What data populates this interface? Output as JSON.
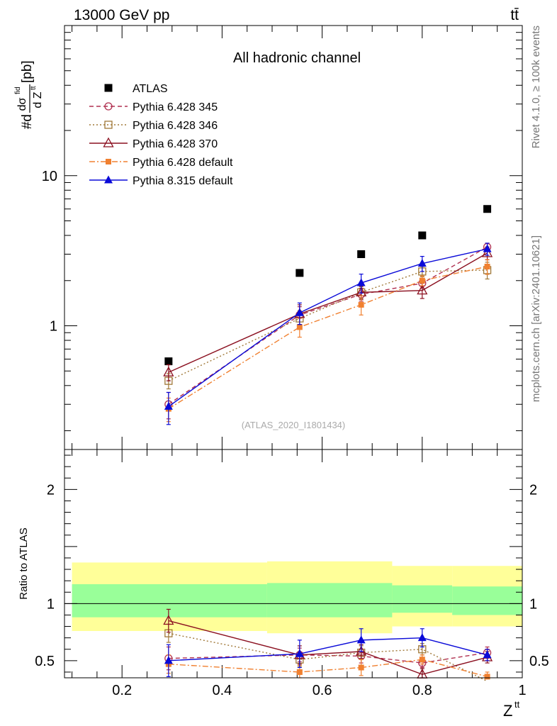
{
  "header": {
    "energy_label": "13000 GeV pp",
    "process_label": "tt̄",
    "rivet_label": "Rivet 4.1.0, ≥ 100k events",
    "mcplots_label": "mcplots.cern.ch [arXiv:2401.10621]"
  },
  "chart_data": [
    {
      "type": "line",
      "panel": "main",
      "title": "All hadronic channel",
      "analysis_label": "(ATLAS_2020_I1801434)",
      "ylabel": {
        "prefix": "#d",
        "numerator": "dσ",
        "num_sup": "fid",
        "denominator": "d Z",
        "den_sup": "tt",
        "unit": " [pb]"
      },
      "yscale": "log",
      "xlim": [
        0.085,
        1.0
      ],
      "ylim": [
        0.15,
        100
      ],
      "ytick_labels": [
        {
          "value": 1,
          "label": "1"
        },
        {
          "value": 10,
          "label": "10"
        }
      ],
      "x": [
        0.293,
        0.555,
        0.678,
        0.8,
        0.93
      ],
      "series": [
        {
          "name": "ATLAS",
          "color": "#000000",
          "marker": "square-filled",
          "line": "none",
          "values": [
            0.58,
            2.25,
            3.0,
            4.0,
            6.0
          ],
          "errors": [
            0,
            0,
            0,
            0,
            0
          ]
        },
        {
          "name": "Pythia 6.428 345",
          "color": "#b03050",
          "marker": "circle-open",
          "line": "dashed",
          "values": [
            0.3,
            1.18,
            1.62,
            1.92,
            3.35
          ],
          "errors": [
            0.06,
            0.16,
            0.16,
            0.14,
            0.2
          ]
        },
        {
          "name": "Pythia 6.428 346",
          "color": "#a07838",
          "marker": "square-open",
          "line": "dotted",
          "values": [
            0.43,
            1.12,
            1.67,
            2.3,
            2.35
          ],
          "errors": [
            0.05,
            0.14,
            0.15,
            0.18,
            0.3
          ]
        },
        {
          "name": "Pythia 6.428 370",
          "color": "#8b1020",
          "marker": "triangle-open",
          "line": "solid",
          "values": [
            0.49,
            1.2,
            1.67,
            1.72,
            3.05
          ],
          "errors": [
            0.06,
            0.18,
            0.17,
            0.2,
            0.3
          ]
        },
        {
          "name": "Pythia 6.428 default",
          "color": "#f08030",
          "marker": "square-filled-small",
          "line": "dashdot",
          "values": [
            0.28,
            0.98,
            1.38,
            2.0,
            2.48
          ],
          "errors": [
            0.05,
            0.14,
            0.2,
            0.15,
            0.28
          ]
        },
        {
          "name": "Pythia 8.315 default",
          "color": "#0a0ad8",
          "marker": "triangle-filled",
          "line": "solid",
          "values": [
            0.29,
            1.22,
            1.93,
            2.6,
            3.25
          ],
          "errors": [
            0.07,
            0.2,
            0.28,
            0.3,
            0.3
          ]
        }
      ]
    },
    {
      "type": "line",
      "panel": "ratio",
      "ylabel": "Ratio to ATLAS",
      "xlabel": {
        "base": "Z",
        "sup": "tt"
      },
      "xlim": [
        0.085,
        1.0
      ],
      "ylim": [
        0.35,
        2.35
      ],
      "xtick_labels": [
        {
          "value": 0.2,
          "label": "0.2"
        },
        {
          "value": 0.4,
          "label": "0.4"
        },
        {
          "value": 0.6,
          "label": "0.6"
        },
        {
          "value": 0.8,
          "label": "0.8"
        },
        {
          "value": 1.0,
          "label": "1"
        }
      ],
      "ytick_labels": [
        {
          "value": 0.5,
          "label": "0.5"
        },
        {
          "value": 1,
          "label": "1"
        },
        {
          "value": 2,
          "label": "2"
        }
      ],
      "bands": [
        {
          "x0": 0.1,
          "x1": 0.49,
          "outer": [
            0.76,
            1.36
          ],
          "inner": [
            0.88,
            1.17
          ]
        },
        {
          "x0": 0.49,
          "x1": 0.74,
          "outer": [
            0.74,
            1.37
          ],
          "inner": [
            0.88,
            1.18
          ]
        },
        {
          "x0": 0.74,
          "x1": 0.86,
          "outer": [
            0.8,
            1.33
          ],
          "inner": [
            0.92,
            1.16
          ]
        },
        {
          "x0": 0.86,
          "x1": 1.0,
          "outer": [
            0.8,
            1.33
          ],
          "inner": [
            0.9,
            1.15
          ]
        }
      ],
      "reference": 1.0,
      "x": [
        0.293,
        0.555,
        0.678,
        0.8,
        0.93
      ],
      "series": [
        {
          "name": "Pythia 6.428 345",
          "color": "#b03050",
          "marker": "circle-open",
          "line": "dashed",
          "values": [
            0.52,
            0.55,
            0.54,
            0.48,
            0.57
          ],
          "errors": [
            0.1,
            0.06,
            0.06,
            0.04,
            0.05
          ]
        },
        {
          "name": "Pythia 6.428 346",
          "color": "#a07838",
          "marker": "square-open",
          "line": "dotted",
          "values": [
            0.74,
            0.51,
            0.57,
            0.6,
            0.32
          ],
          "errors": [
            0.08,
            0.06,
            0.06,
            0.05,
            0.05
          ]
        },
        {
          "name": "Pythia 6.428 370",
          "color": "#8b1020",
          "marker": "triangle-open",
          "line": "solid",
          "values": [
            0.85,
            0.55,
            0.58,
            0.38,
            0.53
          ],
          "errors": [
            0.1,
            0.08,
            0.06,
            0.05,
            0.05
          ]
        },
        {
          "name": "Pythia 6.428 default",
          "color": "#f08030",
          "marker": "square-filled-small",
          "line": "dashdot",
          "values": [
            0.47,
            0.4,
            0.44,
            0.51,
            0.36
          ],
          "errors": [
            0.08,
            0.06,
            0.07,
            0.04,
            0.04
          ]
        },
        {
          "name": "Pythia 8.315 default",
          "color": "#0a0ad8",
          "marker": "triangle-filled",
          "line": "solid",
          "values": [
            0.5,
            0.56,
            0.68,
            0.7,
            0.55
          ],
          "errors": [
            0.14,
            0.12,
            0.1,
            0.08,
            0.05
          ]
        }
      ]
    }
  ]
}
